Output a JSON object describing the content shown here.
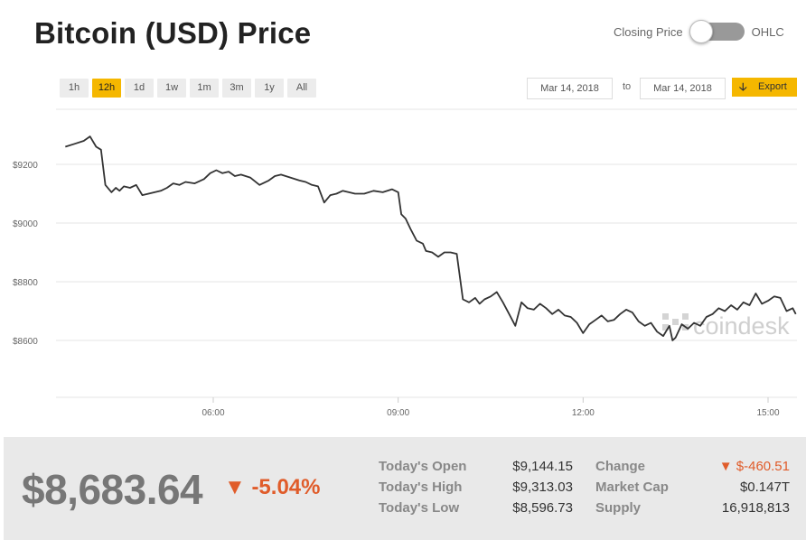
{
  "header": {
    "title": "Bitcoin (USD) Price",
    "toggle_left_label": "Closing Price",
    "toggle_right_label": "OHLC"
  },
  "range_buttons": [
    {
      "label": "1h",
      "active": false
    },
    {
      "label": "12h",
      "active": true
    },
    {
      "label": "1d",
      "active": false
    },
    {
      "label": "1w",
      "active": false
    },
    {
      "label": "1m",
      "active": false
    },
    {
      "label": "3m",
      "active": false
    },
    {
      "label": "1y",
      "active": false
    },
    {
      "label": "All",
      "active": false
    }
  ],
  "date_range": {
    "from": "Mar 14, 2018",
    "to_label": "to",
    "to": "Mar 14, 2018",
    "export_label": "Export"
  },
  "watermark": "coindesk",
  "colors": {
    "accent": "#f5b700",
    "line": "#333333",
    "negative": "#e05c2a",
    "grid": "#e6e6e6"
  },
  "chart_data": {
    "type": "line",
    "title": "",
    "xlabel": "",
    "ylabel": "",
    "y_ticks": [
      {
        "value": 8600,
        "label": "$8600"
      },
      {
        "value": 8800,
        "label": "$8800"
      },
      {
        "value": 9000,
        "label": "$9000"
      },
      {
        "value": 9200,
        "label": "$9200"
      }
    ],
    "x_ticks": [
      {
        "value": 6,
        "label": "06:00"
      },
      {
        "value": 9,
        "label": "09:00"
      },
      {
        "value": 12,
        "label": "12:00"
      },
      {
        "value": 15,
        "label": "15:00"
      }
    ],
    "xlim": [
      3.6,
      15.45
    ],
    "ylim": [
      8400,
      9400
    ],
    "grid": true,
    "series": [
      {
        "x": [
          3.6,
          3.75,
          3.9,
          4.0,
          4.1,
          4.18,
          4.25,
          4.35,
          4.42,
          4.48,
          4.55,
          4.65,
          4.75,
          4.85,
          4.95,
          5.05,
          5.15,
          5.25,
          5.35,
          5.45,
          5.55,
          5.7,
          5.85,
          5.95,
          6.05,
          6.15,
          6.25,
          6.35,
          6.45,
          6.6,
          6.75,
          6.9,
          7.0,
          7.1,
          7.25,
          7.4,
          7.5,
          7.6,
          7.7,
          7.8,
          7.9,
          8.0,
          8.1,
          8.2,
          8.3,
          8.45,
          8.6,
          8.75,
          8.9,
          9.0,
          9.05,
          9.12,
          9.2,
          9.3,
          9.4,
          9.45,
          9.55,
          9.65,
          9.75,
          9.85,
          9.95,
          10.05,
          10.15,
          10.25,
          10.32,
          10.4,
          10.5,
          10.6,
          10.7,
          10.8,
          10.9,
          11.0,
          11.1,
          11.2,
          11.3,
          11.4,
          11.5,
          11.6,
          11.7,
          11.8,
          11.9,
          12.0,
          12.1,
          12.2,
          12.3,
          12.4,
          12.5,
          12.6,
          12.7,
          12.8,
          12.9,
          13.0,
          13.1,
          13.2,
          13.3,
          13.4,
          13.45,
          13.5,
          13.6,
          13.7,
          13.8,
          13.9,
          14.0,
          14.1,
          14.2,
          14.3,
          14.4,
          14.5,
          14.6,
          14.7,
          14.8,
          14.9,
          15.0,
          15.1,
          15.2,
          15.3,
          15.4,
          15.45
        ],
        "y": [
          9260,
          9270,
          9280,
          9295,
          9260,
          9250,
          9130,
          9105,
          9120,
          9110,
          9125,
          9120,
          9130,
          9095,
          9100,
          9105,
          9110,
          9120,
          9135,
          9130,
          9140,
          9135,
          9150,
          9170,
          9180,
          9170,
          9175,
          9160,
          9165,
          9155,
          9130,
          9145,
          9160,
          9165,
          9155,
          9145,
          9140,
          9130,
          9125,
          9070,
          9095,
          9100,
          9110,
          9105,
          9100,
          9100,
          9110,
          9105,
          9115,
          9105,
          9030,
          9015,
          8980,
          8940,
          8930,
          8905,
          8900,
          8885,
          8900,
          8900,
          8895,
          8740,
          8730,
          8745,
          8725,
          8740,
          8750,
          8765,
          8730,
          8690,
          8650,
          8730,
          8710,
          8705,
          8725,
          8710,
          8690,
          8705,
          8685,
          8680,
          8660,
          8625,
          8655,
          8670,
          8685,
          8665,
          8670,
          8690,
          8705,
          8695,
          8665,
          8650,
          8660,
          8630,
          8615,
          8650,
          8600,
          8610,
          8655,
          8640,
          8660,
          8650,
          8680,
          8690,
          8710,
          8700,
          8720,
          8705,
          8730,
          8720,
          8760,
          8725,
          8735,
          8750,
          8745,
          8700,
          8710,
          8690
        ]
      }
    ]
  },
  "summary": {
    "price": "$8,683.64",
    "change_arrow": "▼",
    "change_pct": "-5.04%",
    "stats": [
      {
        "label": "Today's Open",
        "value": "$9,144.15"
      },
      {
        "label": "Today's High",
        "value": "$9,313.03"
      },
      {
        "label": "Today's Low",
        "value": "$8,596.73"
      }
    ],
    "stats2": [
      {
        "label": "Change",
        "value": "▼ $-460.51",
        "negative": true
      },
      {
        "label": "Market Cap",
        "value": "$0.147T",
        "negative": false
      },
      {
        "label": "Supply",
        "value": "16,918,813",
        "negative": false
      }
    ]
  }
}
